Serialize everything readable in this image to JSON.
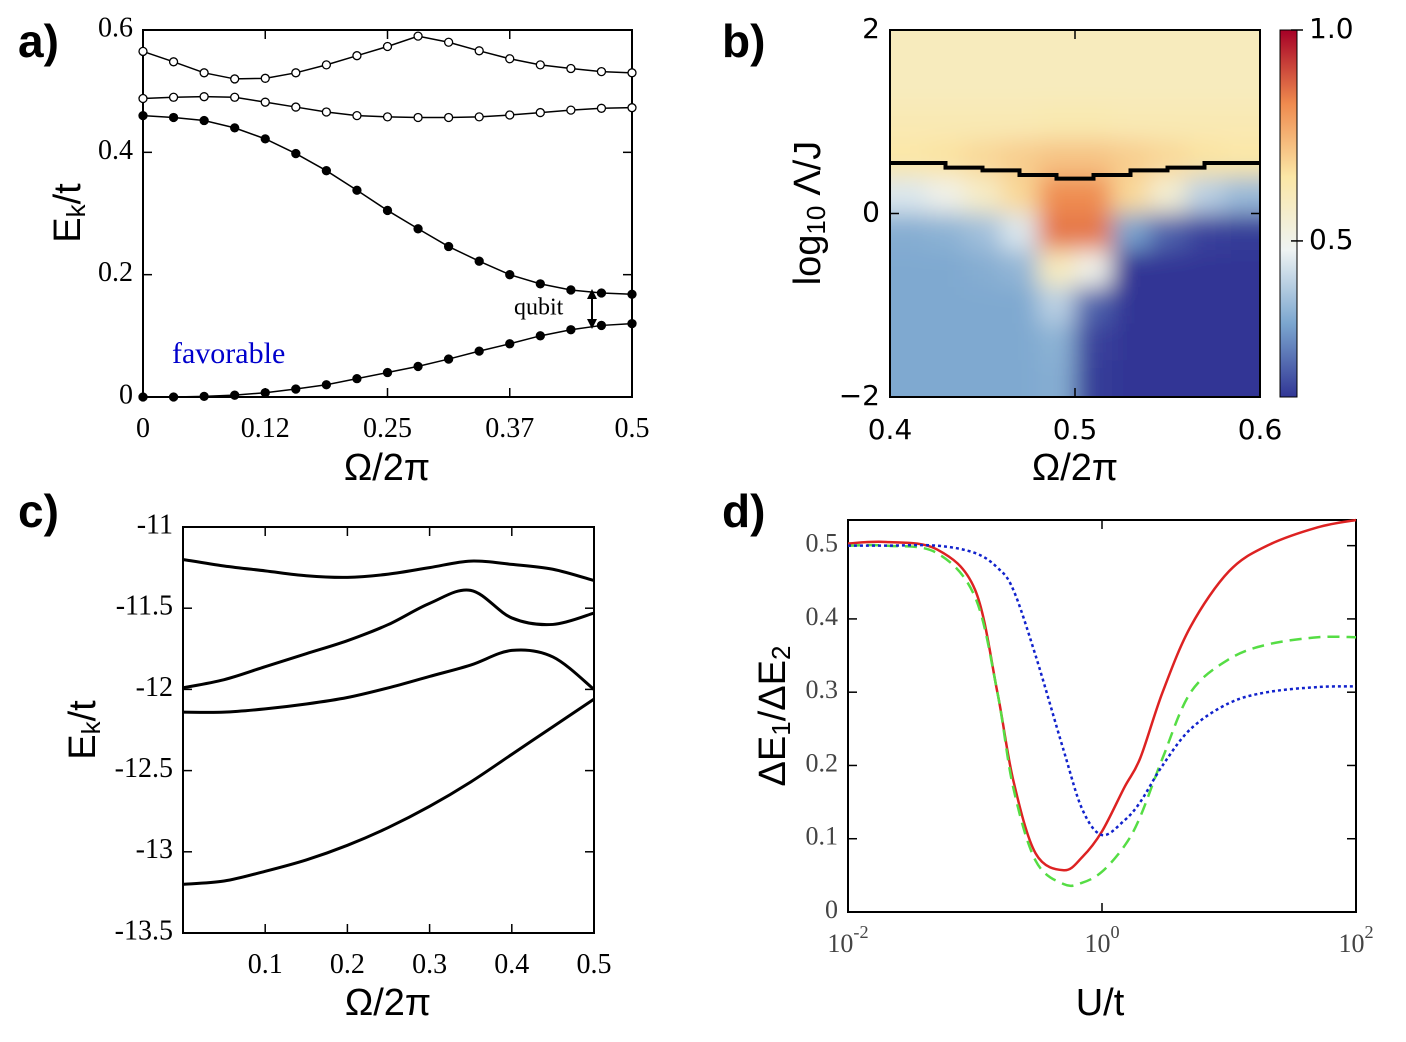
{
  "chart_data": [
    {
      "type": "line",
      "panel_label": "a)",
      "xlabel": "Ω/2π",
      "ylabel": {
        "text": "E",
        "sub": "k",
        "tail": "/t"
      },
      "x": [
        0,
        0.03125,
        0.0625,
        0.09375,
        0.125,
        0.15625,
        0.1875,
        0.21875,
        0.25,
        0.28125,
        0.3125,
        0.34375,
        0.375,
        0.40625,
        0.4375,
        0.46875,
        0.5
      ],
      "xlim": [
        0,
        0.5
      ],
      "ylim": [
        0,
        0.6
      ],
      "xticks": [
        0,
        {
          "value": 0.125,
          "label": "0.12"
        },
        0.25,
        {
          "value": 0.375,
          "label": "0.37"
        },
        0.5
      ],
      "yticks": [
        0,
        0.2,
        0.4,
        0.6
      ],
      "series": [
        {
          "color": "#000000",
          "marker": "open",
          "values": [
            0.565,
            0.548,
            0.53,
            0.52,
            0.521,
            0.53,
            0.543,
            0.558,
            0.573,
            0.59,
            0.58,
            0.566,
            0.553,
            0.543,
            0.537,
            0.532,
            0.53
          ]
        },
        {
          "color": "#000000",
          "marker": "open",
          "values": [
            0.488,
            0.49,
            0.491,
            0.49,
            0.482,
            0.474,
            0.466,
            0.46,
            0.458,
            0.457,
            0.457,
            0.458,
            0.461,
            0.465,
            0.469,
            0.472,
            0.473
          ]
        },
        {
          "color": "#000000",
          "marker": "filled",
          "values": [
            0.46,
            0.457,
            0.452,
            0.44,
            0.422,
            0.398,
            0.37,
            0.338,
            0.305,
            0.275,
            0.246,
            0.222,
            0.2,
            0.185,
            0.175,
            0.17,
            0.168
          ]
        },
        {
          "color": "#000000",
          "marker": "filled",
          "values": [
            0,
            0,
            0.001,
            0.003,
            0.007,
            0.013,
            0.02,
            0.03,
            0.04,
            0.05,
            0.062,
            0.075,
            0.087,
            0.1,
            0.11,
            0.117,
            0.12
          ]
        }
      ],
      "annotations": [
        {
          "text": "qubit",
          "color": "#000000"
        },
        {
          "text": "favorable",
          "color": "#0000cc"
        }
      ]
    },
    {
      "type": "heatmap",
      "panel_label": "b)",
      "xlabel": "Ω/2π",
      "ylabel": {
        "text": "log",
        "sub": "10",
        "tail": "Λ/J"
      },
      "xlim": [
        0.4,
        0.6
      ],
      "ylim": [
        -2,
        2
      ],
      "xticks": [
        0.4,
        0.5,
        0.6
      ],
      "yticks": [
        {
          "value": -2,
          "label": "−2"
        },
        0,
        2
      ],
      "x": [
        0.41,
        0.43,
        0.45,
        0.47,
        0.49,
        0.51,
        0.53,
        0.55,
        0.57,
        0.59
      ],
      "y": [
        1.8,
        1.4,
        1.0,
        0.6,
        0.2,
        -0.2,
        -0.6,
        -1.0,
        -1.4,
        -1.8
      ],
      "z": [
        [
          0.6,
          0.6,
          0.6,
          0.6,
          0.6,
          0.6,
          0.6,
          0.6,
          0.6,
          0.6
        ],
        [
          0.6,
          0.6,
          0.6,
          0.6,
          0.6,
          0.6,
          0.6,
          0.6,
          0.6,
          0.6
        ],
        [
          0.62,
          0.62,
          0.62,
          0.62,
          0.63,
          0.63,
          0.62,
          0.62,
          0.62,
          0.62
        ],
        [
          0.65,
          0.66,
          0.68,
          0.7,
          0.72,
          0.72,
          0.7,
          0.68,
          0.66,
          0.65
        ],
        [
          0.45,
          0.5,
          0.58,
          0.68,
          0.82,
          0.82,
          0.68,
          0.55,
          0.4,
          0.35
        ],
        [
          0.32,
          0.33,
          0.36,
          0.45,
          0.85,
          0.85,
          0.3,
          0.2,
          0.15,
          0.14
        ],
        [
          0.31,
          0.31,
          0.32,
          0.34,
          0.6,
          0.5,
          0.13,
          0.12,
          0.12,
          0.12
        ],
        [
          0.31,
          0.31,
          0.31,
          0.31,
          0.4,
          0.2,
          0.12,
          0.12,
          0.12,
          0.12
        ],
        [
          0.31,
          0.31,
          0.31,
          0.31,
          0.33,
          0.15,
          0.12,
          0.12,
          0.12,
          0.12
        ],
        [
          0.31,
          0.31,
          0.31,
          0.31,
          0.32,
          0.14,
          0.12,
          0.12,
          0.12,
          0.12
        ]
      ],
      "colormap": [
        "#313695",
        "#7ba6cf",
        "#eef3f3",
        "#fbe7a6",
        "#ef8a4e",
        "#a50026"
      ],
      "clim": [
        0.13,
        1.0
      ],
      "cticks": [
        0.5,
        {
          "value": 1,
          "label": "1.0"
        }
      ],
      "contour": {
        "color": "#000000",
        "x": [
          0.4,
          0.42,
          0.44,
          0.46,
          0.48,
          0.5,
          0.52,
          0.54,
          0.56,
          0.58,
          0.6
        ],
        "values": [
          0.55,
          0.55,
          0.5,
          0.47,
          0.42,
          0.38,
          0.42,
          0.47,
          0.5,
          0.55,
          0.55
        ]
      }
    },
    {
      "type": "line",
      "panel_label": "c)",
      "xlabel": "Ω/2π",
      "ylabel": {
        "text": "E",
        "sub": "k",
        "tail": "/t"
      },
      "x": [
        0,
        0.05,
        0.1,
        0.15,
        0.2,
        0.25,
        0.3,
        0.35,
        0.4,
        0.45,
        0.5
      ],
      "xlim": [
        0,
        0.5
      ],
      "ylim": [
        -13.5,
        -11
      ],
      "xticks": [
        0.1,
        0.2,
        0.3,
        0.4,
        0.5
      ],
      "yticks": [
        -11,
        -11.5,
        -12,
        -12.5,
        -13,
        -13.5
      ],
      "series": [
        {
          "color": "#000000",
          "values": [
            -11.2,
            -11.24,
            -11.27,
            -11.3,
            -11.31,
            -11.29,
            -11.25,
            -11.21,
            -11.23,
            -11.26,
            -11.33
          ]
        },
        {
          "color": "#000000",
          "values": [
            -11.99,
            -11.94,
            -11.86,
            -11.78,
            -11.7,
            -11.6,
            -11.47,
            -11.39,
            -11.56,
            -11.6,
            -11.53
          ]
        },
        {
          "color": "#000000",
          "values": [
            -12.14,
            -12.14,
            -12.12,
            -12.09,
            -12.05,
            -11.99,
            -11.92,
            -11.85,
            -11.76,
            -11.8,
            -12.0
          ]
        },
        {
          "color": "#000000",
          "values": [
            -13.2,
            -13.18,
            -13.12,
            -13.05,
            -12.96,
            -12.85,
            -12.72,
            -12.57,
            -12.4,
            -12.23,
            -12.06
          ]
        }
      ]
    },
    {
      "type": "line",
      "panel_label": "d)",
      "xlabel": "U/t",
      "ylabel": {
        "text": "ΔE",
        "sub": "1",
        "tail": "/ΔE",
        "sub2": "2"
      },
      "xscale": "log",
      "x": [
        0.01,
        0.02,
        0.05,
        0.1,
        0.15,
        0.2,
        0.3,
        0.5,
        0.7,
        1,
        1.5,
        2,
        3,
        5,
        10,
        20,
        50,
        100
      ],
      "xlim": [
        0.01,
        100
      ],
      "ylim": [
        0,
        0.535
      ],
      "xticks": [
        {
          "value": 0.01,
          "label": "10",
          "exponent": "-2"
        },
        {
          "value": 1,
          "label": "10",
          "exponent": "0"
        },
        {
          "value": 100,
          "label": "10",
          "exponent": "2"
        }
      ],
      "yticks": [
        0,
        0.1,
        0.2,
        0.3,
        0.4,
        0.5
      ],
      "series": [
        {
          "color": "#dd2222",
          "dash": "solid",
          "values": [
            0.503,
            0.505,
            0.495,
            0.44,
            0.3,
            0.18,
            0.08,
            0.057,
            0.075,
            0.11,
            0.17,
            0.21,
            0.3,
            0.39,
            0.465,
            0.5,
            0.525,
            0.535
          ]
        },
        {
          "color": "#55dd44",
          "dash": "dashed",
          "values": [
            0.5,
            0.5,
            0.49,
            0.43,
            0.3,
            0.17,
            0.07,
            0.038,
            0.04,
            0.055,
            0.09,
            0.13,
            0.21,
            0.3,
            0.345,
            0.365,
            0.375,
            0.375
          ]
        },
        {
          "color": "#1122cc",
          "dash": "dotted",
          "values": [
            0.5,
            0.5,
            0.5,
            0.49,
            0.47,
            0.44,
            0.35,
            0.22,
            0.14,
            0.105,
            0.125,
            0.15,
            0.2,
            0.25,
            0.285,
            0.3,
            0.307,
            0.308
          ]
        }
      ]
    }
  ]
}
